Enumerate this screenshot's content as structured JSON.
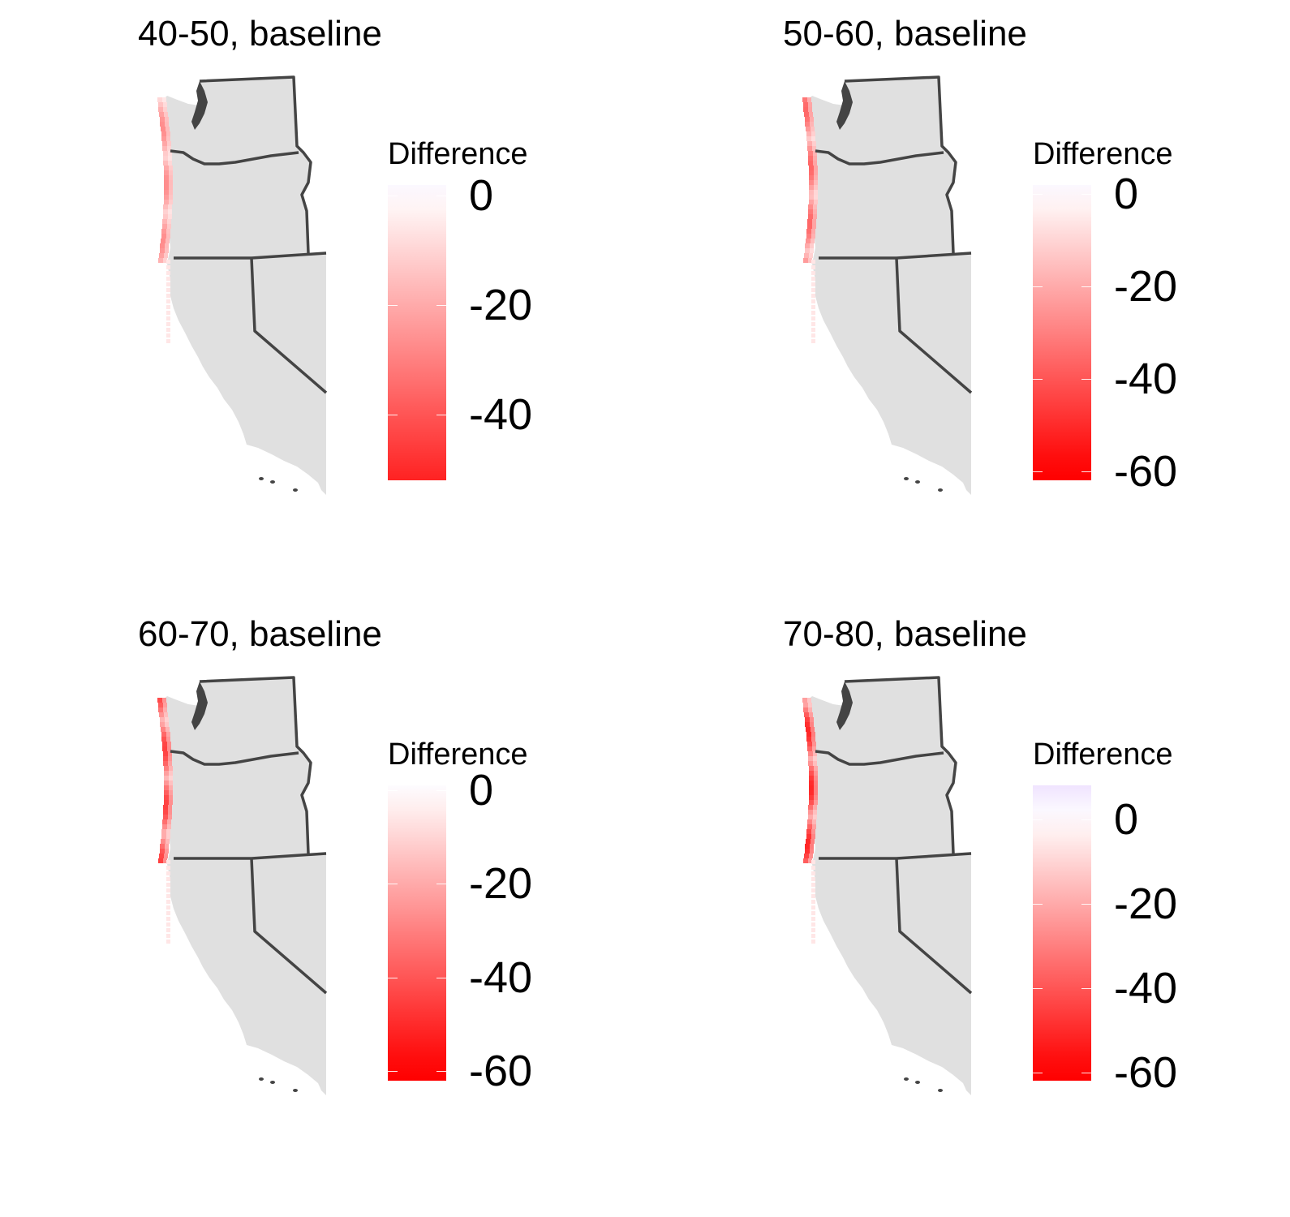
{
  "panels": [
    {
      "title": "40-50, baseline",
      "legend": {
        "title": "Difference",
        "ticks": [
          {
            "label": "0",
            "value": 0
          },
          {
            "label": "-20",
            "value": -20
          },
          {
            "label": "-40",
            "value": -40
          }
        ],
        "range": [
          -52,
          2
        ]
      }
    },
    {
      "title": "50-60, baseline",
      "legend": {
        "title": "Difference",
        "ticks": [
          {
            "label": "0",
            "value": 0
          },
          {
            "label": "-20",
            "value": -20
          },
          {
            "label": "-40",
            "value": -40
          },
          {
            "label": "-60",
            "value": -60
          }
        ],
        "range": [
          -62,
          2
        ]
      }
    },
    {
      "title": "60-70, baseline",
      "legend": {
        "title": "Difference",
        "ticks": [
          {
            "label": "0",
            "value": 0
          },
          {
            "label": "-20",
            "value": -20
          },
          {
            "label": "-40",
            "value": -40
          },
          {
            "label": "-60",
            "value": -60
          }
        ],
        "range": [
          -62,
          1
        ]
      }
    },
    {
      "title": "70-80, baseline",
      "legend": {
        "title": "Difference",
        "ticks": [
          {
            "label": "0",
            "value": 0
          },
          {
            "label": "-20",
            "value": -20
          },
          {
            "label": "-40",
            "value": -40
          },
          {
            "label": "-60",
            "value": -60
          }
        ],
        "range": [
          -62,
          8
        ]
      }
    }
  ],
  "colors": {
    "land": "#e0e0e0",
    "border": "#444444",
    "high": "#f0e4ff",
    "mid": "#ffffff",
    "low": "#ff0000"
  }
}
